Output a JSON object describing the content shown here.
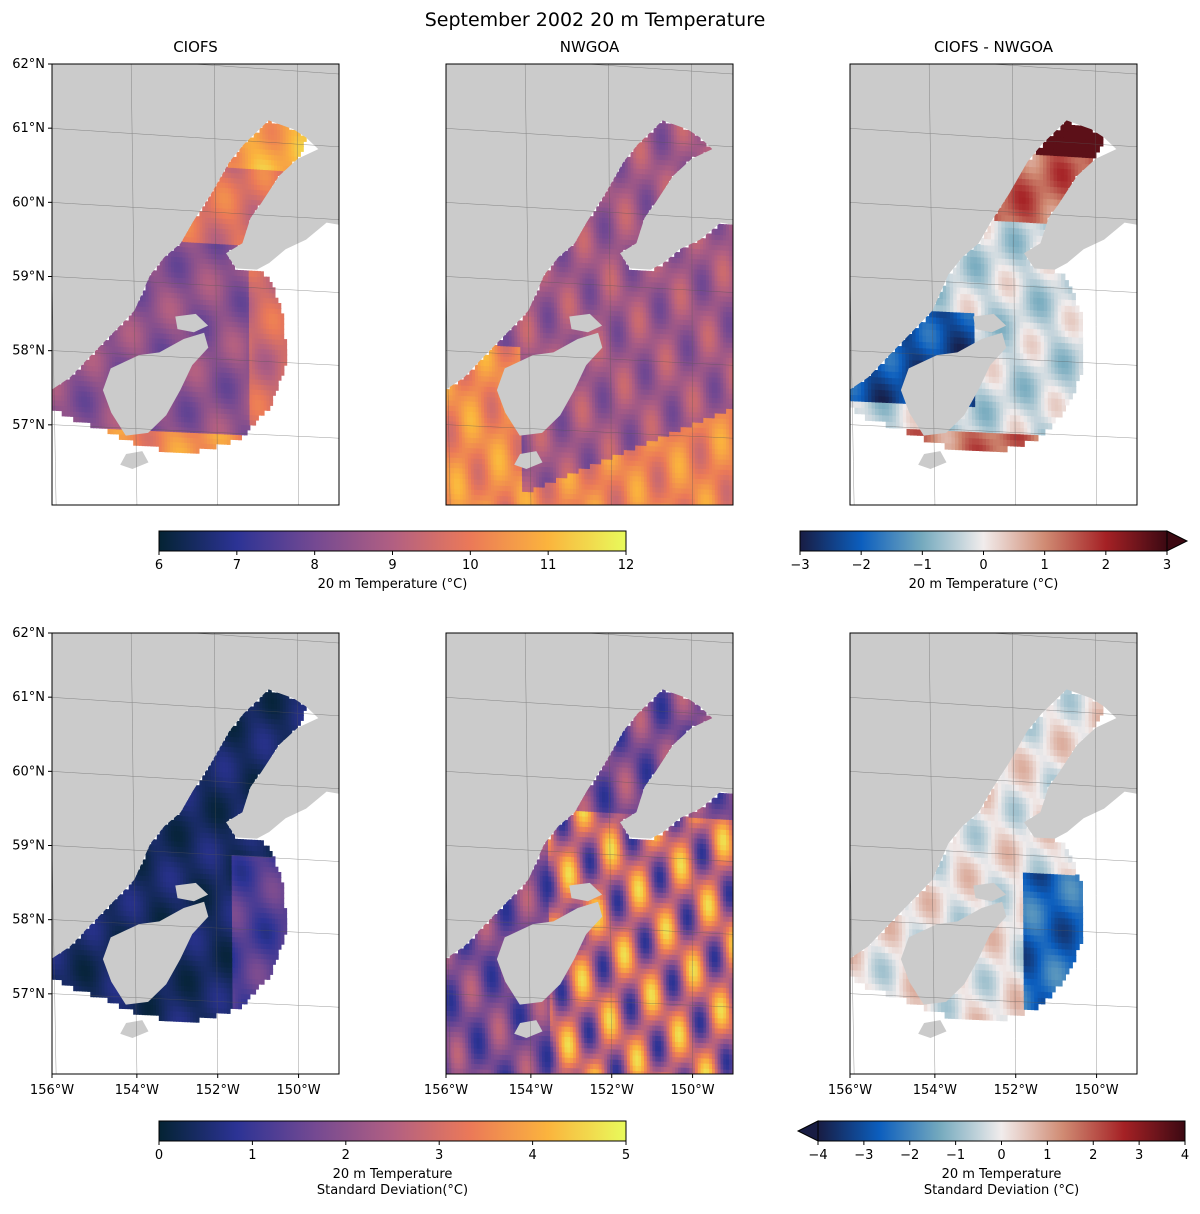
{
  "chart_data": {
    "type": "heatmap",
    "title": "September 2002 20 m Temperature",
    "axes": {
      "lat_ticks": [
        "62°N",
        "61°N",
        "60°N",
        "59°N",
        "58°N",
        "57°N"
      ],
      "lon_ticks": [
        "156°W",
        "154°W",
        "152°W",
        "150°W"
      ]
    },
    "panels": [
      {
        "id": "ciofs-mean",
        "row": 0,
        "col": 0,
        "title": "CIOFS",
        "field": "mean",
        "domain": "cook-inlet",
        "colormap": "thermal",
        "show_lat_ticks": true,
        "show_lon_ticks": false
      },
      {
        "id": "nwgoa-mean",
        "row": 0,
        "col": 1,
        "title": "NWGOA",
        "field": "mean",
        "domain": "gulf",
        "colormap": "thermal",
        "show_lat_ticks": false,
        "show_lon_ticks": false
      },
      {
        "id": "diff-mean",
        "row": 0,
        "col": 2,
        "title": "CIOFS - NWGOA",
        "field": "mean-diff",
        "domain": "cook-inlet-coarse",
        "colormap": "balance",
        "show_lat_ticks": false,
        "show_lon_ticks": false
      },
      {
        "id": "ciofs-std",
        "row": 1,
        "col": 0,
        "title": "",
        "field": "std",
        "domain": "cook-inlet",
        "colormap": "thermal",
        "show_lat_ticks": true,
        "show_lon_ticks": true
      },
      {
        "id": "nwgoa-std",
        "row": 1,
        "col": 1,
        "title": "",
        "field": "std",
        "domain": "gulf",
        "colormap": "thermal",
        "show_lat_ticks": false,
        "show_lon_ticks": true
      },
      {
        "id": "diff-std",
        "row": 1,
        "col": 2,
        "title": "",
        "field": "std-diff",
        "domain": "cook-inlet-coarse",
        "colormap": "balance",
        "show_lat_ticks": false,
        "show_lon_ticks": true
      }
    ],
    "colorbars": [
      {
        "id": "cb-mean",
        "colormap": "thermal",
        "vmin": 6,
        "vmax": 12,
        "ticks": [
          "6",
          "7",
          "8",
          "9",
          "10",
          "11",
          "12"
        ],
        "label_lines": [
          "20 m Temperature (°C)"
        ],
        "extend": "neither"
      },
      {
        "id": "cb-mean-diff",
        "colormap": "balance",
        "vmin": -3,
        "vmax": 3,
        "ticks": [
          "−3",
          "−2",
          "−1",
          "0",
          "1",
          "2",
          "3"
        ],
        "label_lines": [
          "20 m Temperature (°C)"
        ],
        "extend": "max"
      },
      {
        "id": "cb-std",
        "colormap": "thermal",
        "vmin": 0,
        "vmax": 5,
        "ticks": [
          "0",
          "1",
          "2",
          "3",
          "4",
          "5"
        ],
        "label_lines": [
          "20 m Temperature",
          "Standard Deviation(°C)"
        ],
        "extend": "neither"
      },
      {
        "id": "cb-std-diff",
        "colormap": "balance",
        "vmin": -4,
        "vmax": 4,
        "ticks": [
          "−4",
          "−3",
          "−2",
          "−1",
          "0",
          "1",
          "2",
          "3",
          "4"
        ],
        "label_lines": [
          "20 m Temperature",
          "Standard Deviation (°C)"
        ],
        "extend": "min"
      }
    ],
    "colors": {
      "land": "#cbcbcb",
      "nodata": "#ffffff",
      "thermal": [
        "#042333",
        "#2c3395",
        "#744992",
        "#b15f82",
        "#eb7958",
        "#fbb43d",
        "#e8fa5b"
      ],
      "balance": [
        "#181c43",
        "#0c5ebe",
        "#75aabe",
        "#f1ecec",
        "#d08b73",
        "#a52125",
        "#3c0912"
      ]
    }
  }
}
